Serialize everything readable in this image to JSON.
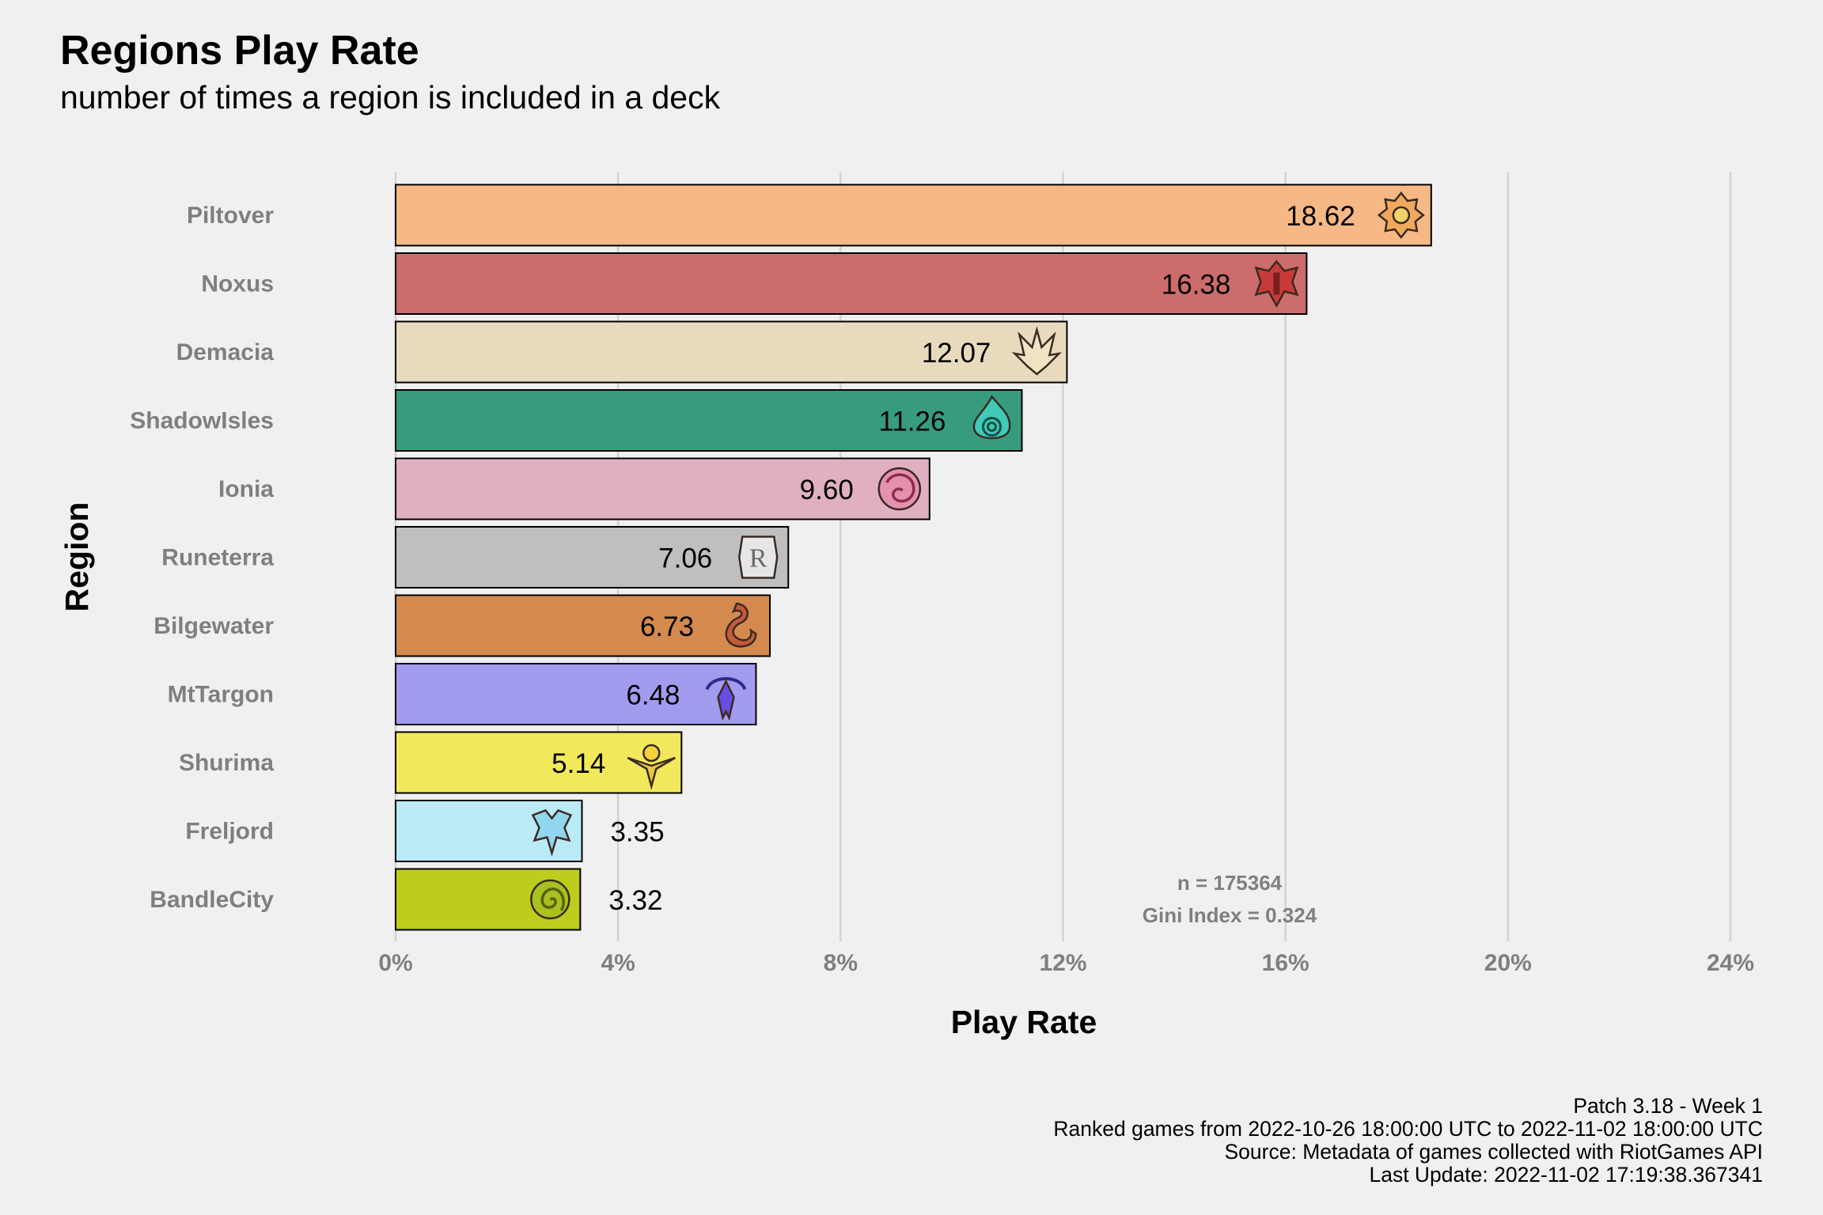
{
  "chart_data": {
    "type": "bar",
    "orientation": "horizontal",
    "title": "Regions Play Rate",
    "subtitle": "number of times a region is included in a deck",
    "xlabel": "Play Rate",
    "ylabel": "Region",
    "xlim": [
      0,
      24
    ],
    "x_ticks": [
      0,
      4,
      8,
      12,
      16,
      20,
      24
    ],
    "x_tick_labels": [
      "0%",
      "4%",
      "8%",
      "12%",
      "16%",
      "20%",
      "24%"
    ],
    "grid": "vertical major",
    "categories": [
      "Piltover",
      "Noxus",
      "Demacia",
      "ShadowIsles",
      "Ionia",
      "Runeterra",
      "Bilgewater",
      "MtTargon",
      "Shurima",
      "Freljord",
      "BandleCity"
    ],
    "values": [
      18.62,
      16.38,
      12.07,
      11.26,
      9.6,
      7.06,
      6.73,
      6.48,
      5.14,
      3.35,
      3.32
    ],
    "value_labels": [
      "18.62",
      "16.38",
      "12.07",
      "11.26",
      "9.60",
      "7.06",
      "6.73",
      "6.48",
      "5.14",
      "3.35",
      "3.32"
    ],
    "colors": [
      "#f6b884",
      "#cd6c6c",
      "#e8dbbd",
      "#379c7e",
      "#e0b0c1",
      "#bfbfbf",
      "#d48a4e",
      "#a29cee",
      "#f2e85b",
      "#bbeaf7",
      "#bccd1d"
    ],
    "icons": [
      "piltover-icon",
      "noxus-icon",
      "demacia-icon",
      "shadowisles-icon",
      "ionia-icon",
      "runeterra-icon",
      "bilgewater-icon",
      "mttargon-icon",
      "shurima-icon",
      "freljord-icon",
      "bandlecity-icon"
    ],
    "annotations": [
      "n = 175364",
      "Gini Index = 0.324"
    ]
  },
  "caption": [
    "Patch 3.18 - Week 1",
    "Ranked games from 2022-10-26 18:00:00 UTC to 2022-11-02 18:00:00 UTC",
    "Source: Metadata of games collected with RiotGames API",
    "Last Update: 2022-11-02 17:19:38.367341"
  ]
}
